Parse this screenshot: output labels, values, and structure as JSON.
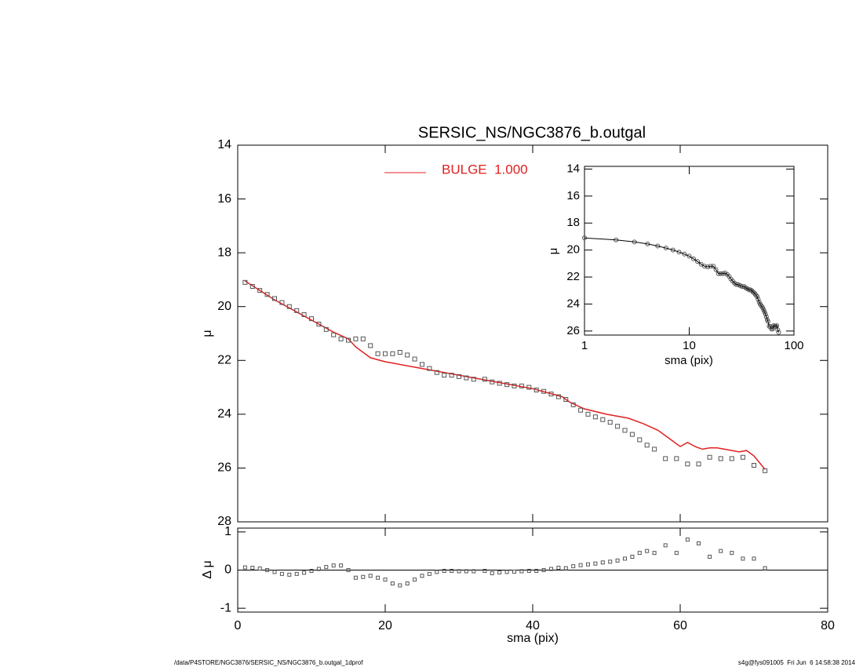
{
  "chart_data": {
    "type": "scatter",
    "title": "SERSIC_NS/NGC3876_b.outgal",
    "ylabel": "μ",
    "xlim": [
      0,
      80
    ],
    "xticks": [
      0,
      20,
      40,
      60,
      80
    ],
    "ylim": [
      14,
      28
    ],
    "yticks": [
      14,
      16,
      18,
      20,
      22,
      24,
      26,
      28
    ],
    "y_inverted": true,
    "marker_color": "#555555",
    "x": [
      1,
      2,
      3,
      4,
      5,
      6,
      7,
      8,
      9,
      10,
      11,
      12,
      13,
      14,
      15,
      16,
      17,
      18,
      19,
      20,
      21,
      22,
      23,
      24,
      25,
      26,
      27,
      28,
      29,
      30,
      31,
      32,
      33.5,
      34.5,
      35.5,
      36.5,
      37.5,
      38.5,
      39.5,
      40.5,
      41.5,
      42.5,
      43.5,
      44.5,
      45.5,
      46.5,
      47.5,
      48.5,
      49.5,
      50.5,
      51.5,
      52.5,
      53.5,
      54.5,
      55.5,
      56.5,
      58,
      59.5,
      61,
      62.5,
      64,
      65.5,
      67,
      68.5,
      70,
      71.5
    ],
    "values": [
      19.1,
      19.25,
      19.4,
      19.55,
      19.7,
      19.85,
      20.0,
      20.15,
      20.3,
      20.45,
      20.65,
      20.85,
      21.05,
      21.2,
      21.25,
      21.2,
      21.2,
      21.45,
      21.75,
      21.75,
      21.75,
      21.7,
      21.8,
      21.95,
      22.15,
      22.3,
      22.45,
      22.55,
      22.55,
      22.6,
      22.65,
      22.7,
      22.7,
      22.8,
      22.85,
      22.9,
      22.95,
      22.95,
      23.0,
      23.1,
      23.15,
      23.25,
      23.35,
      23.45,
      23.65,
      23.85,
      24.0,
      24.1,
      24.2,
      24.3,
      24.45,
      24.6,
      24.75,
      24.95,
      25.15,
      25.3,
      25.65,
      25.65,
      25.85,
      25.85,
      25.6,
      25.65,
      25.65,
      25.6,
      25.9,
      26.1
    ],
    "series": [
      {
        "name": "BULGE  1.000",
        "color": "#e02020",
        "x": [
          1,
          5,
          10,
          13,
          15,
          16,
          18,
          20,
          25,
          30,
          35,
          40,
          44,
          45,
          47,
          50,
          52,
          53,
          55,
          57,
          59,
          60,
          61,
          62,
          63,
          64,
          65,
          66,
          67,
          68,
          69,
          70,
          71.5
        ],
        "values": [
          19.05,
          19.75,
          20.5,
          20.95,
          21.2,
          21.5,
          21.9,
          22.05,
          22.3,
          22.55,
          22.8,
          23.05,
          23.35,
          23.55,
          23.8,
          24.0,
          24.1,
          24.15,
          24.35,
          24.6,
          25.0,
          25.2,
          25.05,
          25.2,
          25.3,
          25.25,
          25.25,
          25.3,
          25.35,
          25.4,
          25.35,
          25.55,
          26.05
        ]
      }
    ],
    "residual": {
      "ylabel": "Δ μ",
      "xlabel": "sma (pix)",
      "ylim": [
        -1.1,
        1.1
      ],
      "yticks": [
        -1,
        0,
        1
      ],
      "values": [
        0.07,
        0.06,
        0.04,
        0.0,
        -0.05,
        -0.1,
        -0.12,
        -0.1,
        -0.07,
        -0.02,
        0.03,
        0.08,
        0.12,
        0.12,
        0.0,
        -0.2,
        -0.18,
        -0.15,
        -0.2,
        -0.25,
        -0.35,
        -0.4,
        -0.35,
        -0.25,
        -0.15,
        -0.1,
        -0.05,
        -0.02,
        -0.02,
        -0.03,
        -0.03,
        -0.03,
        -0.02,
        -0.08,
        -0.06,
        -0.05,
        -0.04,
        -0.03,
        -0.02,
        -0.02,
        0.0,
        0.03,
        0.06,
        0.05,
        0.1,
        0.13,
        0.15,
        0.17,
        0.2,
        0.22,
        0.25,
        0.3,
        0.35,
        0.45,
        0.5,
        0.45,
        0.65,
        0.45,
        0.8,
        0.7,
        0.35,
        0.5,
        0.45,
        0.3,
        0.3,
        0.05
      ]
    },
    "inset": {
      "xlabel": "sma (pix)",
      "ylabel": "μ",
      "log_x": true,
      "xlim": [
        1,
        100
      ],
      "xticks": [
        1,
        10,
        100
      ],
      "ylim": [
        13.8,
        26.3
      ],
      "yticks": [
        14,
        16,
        18,
        20,
        22,
        24,
        26
      ],
      "y_inverted": true
    }
  },
  "footer_left": "/data/P4STORE/NGC3876/SERSIC_NS/NGC3876_b.outgal_1dprof",
  "footer_right": "s4g@fys091005  Fri Jun  6 14:58:38 2014"
}
